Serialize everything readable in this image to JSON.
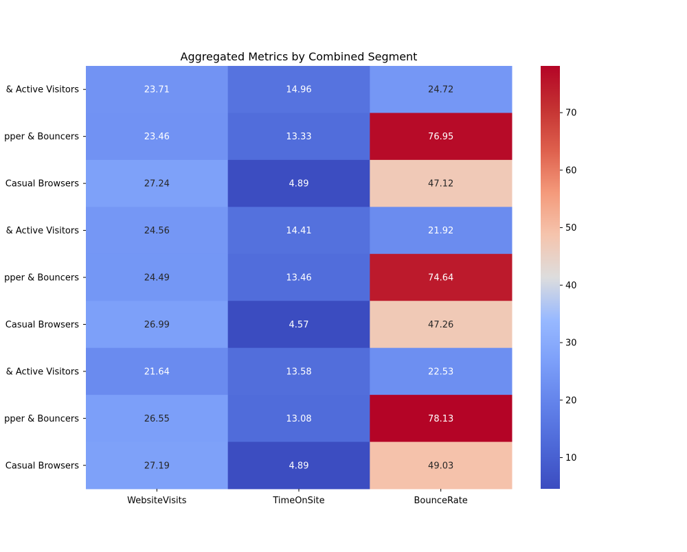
{
  "chart_data": {
    "type": "heatmap",
    "title": "Aggregated Metrics by Combined Segment",
    "xlabel": "",
    "ylabel": "",
    "columns": [
      "WebsiteVisits",
      "TimeOnSite",
      "BounceRate"
    ],
    "rows": [
      "& Active Visitors",
      "pper & Bouncers",
      "Casual Browsers",
      "& Active Visitors",
      "pper & Bouncers",
      "Casual Browsers",
      "& Active Visitors",
      "pper & Bouncers",
      "Casual Browsers"
    ],
    "values": [
      [
        23.71,
        14.96,
        24.72
      ],
      [
        23.46,
        13.33,
        76.95
      ],
      [
        27.24,
        4.89,
        47.12
      ],
      [
        24.56,
        14.41,
        21.92
      ],
      [
        24.49,
        13.46,
        74.64
      ],
      [
        26.99,
        4.57,
        47.26
      ],
      [
        21.64,
        13.58,
        22.53
      ],
      [
        26.55,
        13.08,
        78.13
      ],
      [
        27.19,
        4.89,
        49.03
      ]
    ],
    "colormap": "coolwarm",
    "colorbar": {
      "range": [
        4.57,
        78.13
      ],
      "ticks": [
        10,
        20,
        30,
        40,
        50,
        60,
        70
      ]
    },
    "annotations": true,
    "grid": false
  }
}
